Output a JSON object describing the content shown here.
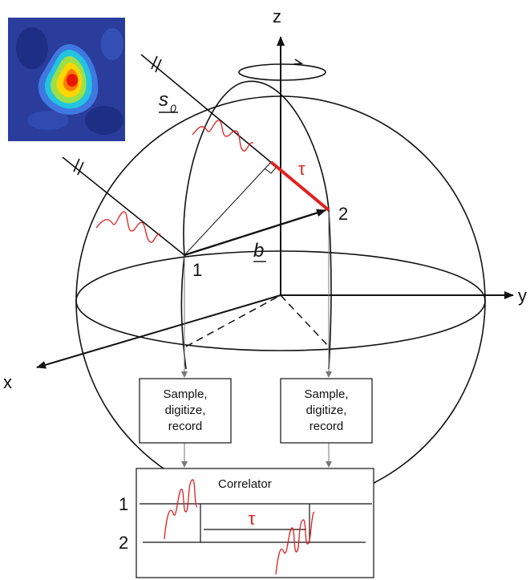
{
  "axes": {
    "x": "x",
    "y": "y",
    "z": "z"
  },
  "source_direction": "s",
  "source_direction_subscript": "0",
  "baseline": "b",
  "antenna_1": "1",
  "antenna_2": "2",
  "delay_symbol": "τ",
  "recorder_1": {
    "line1": "Sample,",
    "line2": "digitize,",
    "line3": "record"
  },
  "recorder_2": {
    "line1": "Sample,",
    "line2": "digitize,",
    "line3": "record"
  },
  "correlator": {
    "title": "Correlator",
    "row_1": "1",
    "row_2": "2",
    "delay_symbol": "τ"
  },
  "colors": {
    "signal": "#e02020",
    "delay_segment": "#e02020",
    "line": "#111111",
    "image_background": "#2a3c9c"
  }
}
